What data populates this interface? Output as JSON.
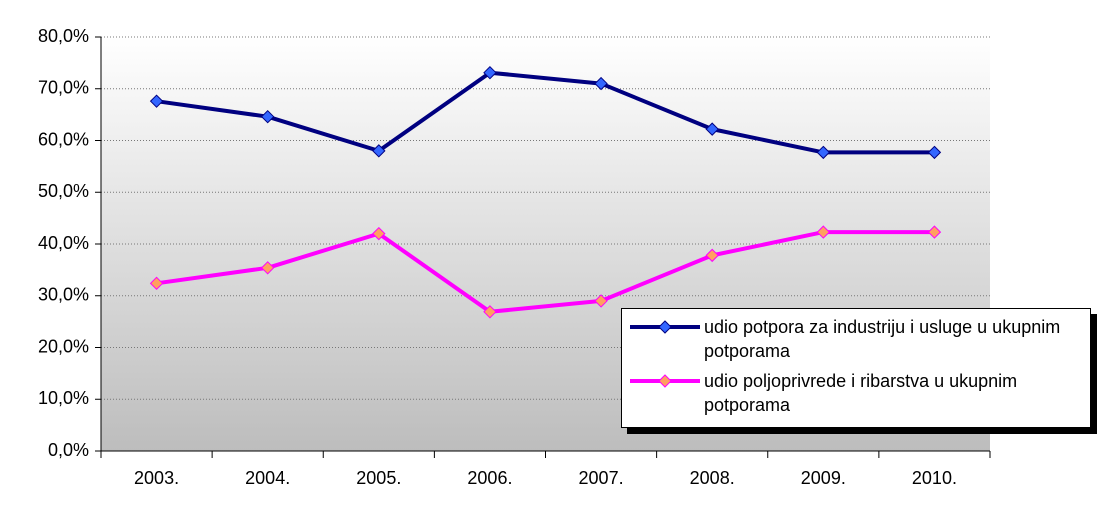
{
  "chart_data": {
    "type": "line",
    "categories": [
      "2003.",
      "2004.",
      "2005.",
      "2006.",
      "2007.",
      "2008.",
      "2009.",
      "2010."
    ],
    "series": [
      {
        "name": "udio potpora za industriju i usluge u ukupnim potporama",
        "color": "#000080",
        "marker_color": "#3366ff",
        "values": [
          67.6,
          64.6,
          58.0,
          73.1,
          71.0,
          62.2,
          57.7,
          57.7
        ]
      },
      {
        "name": "udio poljoprivrede i ribarstva u ukupnim potporama",
        "color": "#ff00ff",
        "marker_color": "#ffa060",
        "values": [
          32.4,
          35.4,
          42.0,
          26.9,
          29.0,
          37.8,
          42.3,
          42.3
        ]
      }
    ],
    "ylim": [
      0,
      80
    ],
    "yticks": [
      {
        "value": 0,
        "label": "0,0%"
      },
      {
        "value": 10,
        "label": "10,0%"
      },
      {
        "value": 20,
        "label": "20,0%"
      },
      {
        "value": 30,
        "label": "30,0%"
      },
      {
        "value": 40,
        "label": "40,0%"
      },
      {
        "value": 50,
        "label": "50,0%"
      },
      {
        "value": 60,
        "label": "60,0%"
      },
      {
        "value": 70,
        "label": "70,0%"
      },
      {
        "value": 80,
        "label": "80,0%"
      }
    ],
    "grid": true,
    "legend": "lower right"
  }
}
